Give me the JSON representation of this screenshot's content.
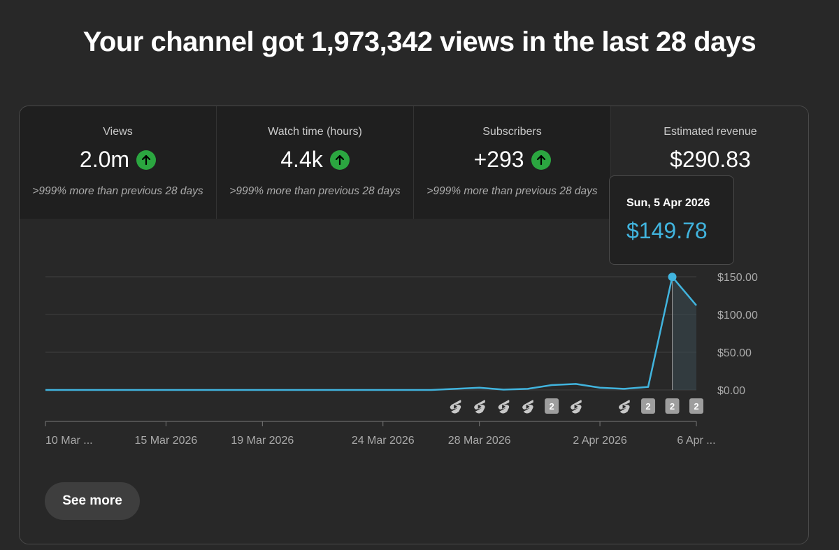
{
  "headline": "Your channel got 1,973,342 views in the last 28 days",
  "metrics": [
    {
      "label": "Views",
      "value": "2.0m",
      "note": ">999% more than previous 28 days",
      "trend": "up"
    },
    {
      "label": "Watch time (hours)",
      "value": "4.4k",
      "note": ">999% more than previous 28 days",
      "trend": "up"
    },
    {
      "label": "Subscribers",
      "value": "+293",
      "note": ">999% more than previous 28 days",
      "trend": "up"
    },
    {
      "label": "Estimated revenue",
      "value": "$290.83",
      "note": "",
      "trend": ""
    }
  ],
  "tooltip": {
    "date": "Sun, 5 Apr 2026",
    "value": "$149.78"
  },
  "see_more_label": "See more",
  "colors": {
    "line": "#41b4de",
    "up": "#2ba640",
    "background": "#282828"
  },
  "chart_data": {
    "type": "line",
    "x": [
      "10 Mar",
      "11 Mar",
      "12 Mar",
      "13 Mar",
      "14 Mar",
      "15 Mar",
      "16 Mar",
      "17 Mar",
      "18 Mar",
      "19 Mar",
      "20 Mar",
      "21 Mar",
      "22 Mar",
      "23 Mar",
      "24 Mar",
      "25 Mar",
      "26 Mar",
      "27 Mar",
      "28 Mar",
      "29 Mar",
      "30 Mar",
      "31 Mar",
      "1 Apr",
      "2 Apr",
      "3 Apr",
      "4 Apr",
      "5 Apr",
      "6 Apr"
    ],
    "values": [
      0,
      0,
      0,
      0,
      0,
      0,
      0,
      0,
      0,
      0,
      0,
      0,
      0,
      0,
      0,
      0,
      0,
      1.5,
      3,
      0.5,
      1.5,
      6.5,
      8,
      3,
      1.5,
      4,
      149.78,
      112
    ],
    "ylim": [
      0,
      150
    ],
    "yticks": [
      "$0.00",
      "$50.00",
      "$100.00",
      "$150.00"
    ],
    "ytick_values": [
      0,
      50,
      100,
      150
    ],
    "xticks": [
      {
        "label": "10 Mar ...",
        "index": 0
      },
      {
        "label": "15 Mar 2026",
        "index": 5
      },
      {
        "label": "19 Mar 2026",
        "index": 9
      },
      {
        "label": "24 Mar 2026",
        "index": 14
      },
      {
        "label": "28 Mar 2026",
        "index": 18
      },
      {
        "label": "2 Apr 2026",
        "index": 23
      },
      {
        "label": "6 Apr ...",
        "index": 27
      }
    ],
    "highlight_index": 26,
    "markers": [
      {
        "index": 17,
        "kind": "shorts-icon",
        "text": ""
      },
      {
        "index": 18,
        "kind": "shorts-icon",
        "text": ""
      },
      {
        "index": 19,
        "kind": "shorts-icon",
        "text": ""
      },
      {
        "index": 20,
        "kind": "shorts-icon",
        "text": ""
      },
      {
        "index": 21,
        "kind": "count",
        "text": "2"
      },
      {
        "index": 22,
        "kind": "shorts-icon",
        "text": ""
      },
      {
        "index": 24,
        "kind": "shorts-icon",
        "text": ""
      },
      {
        "index": 25,
        "kind": "count",
        "text": "2"
      },
      {
        "index": 26,
        "kind": "count",
        "text": "2"
      },
      {
        "index": 27,
        "kind": "count",
        "text": "2"
      }
    ],
    "grid": true,
    "area_fill": "after highlight",
    "axis_position": "right"
  }
}
